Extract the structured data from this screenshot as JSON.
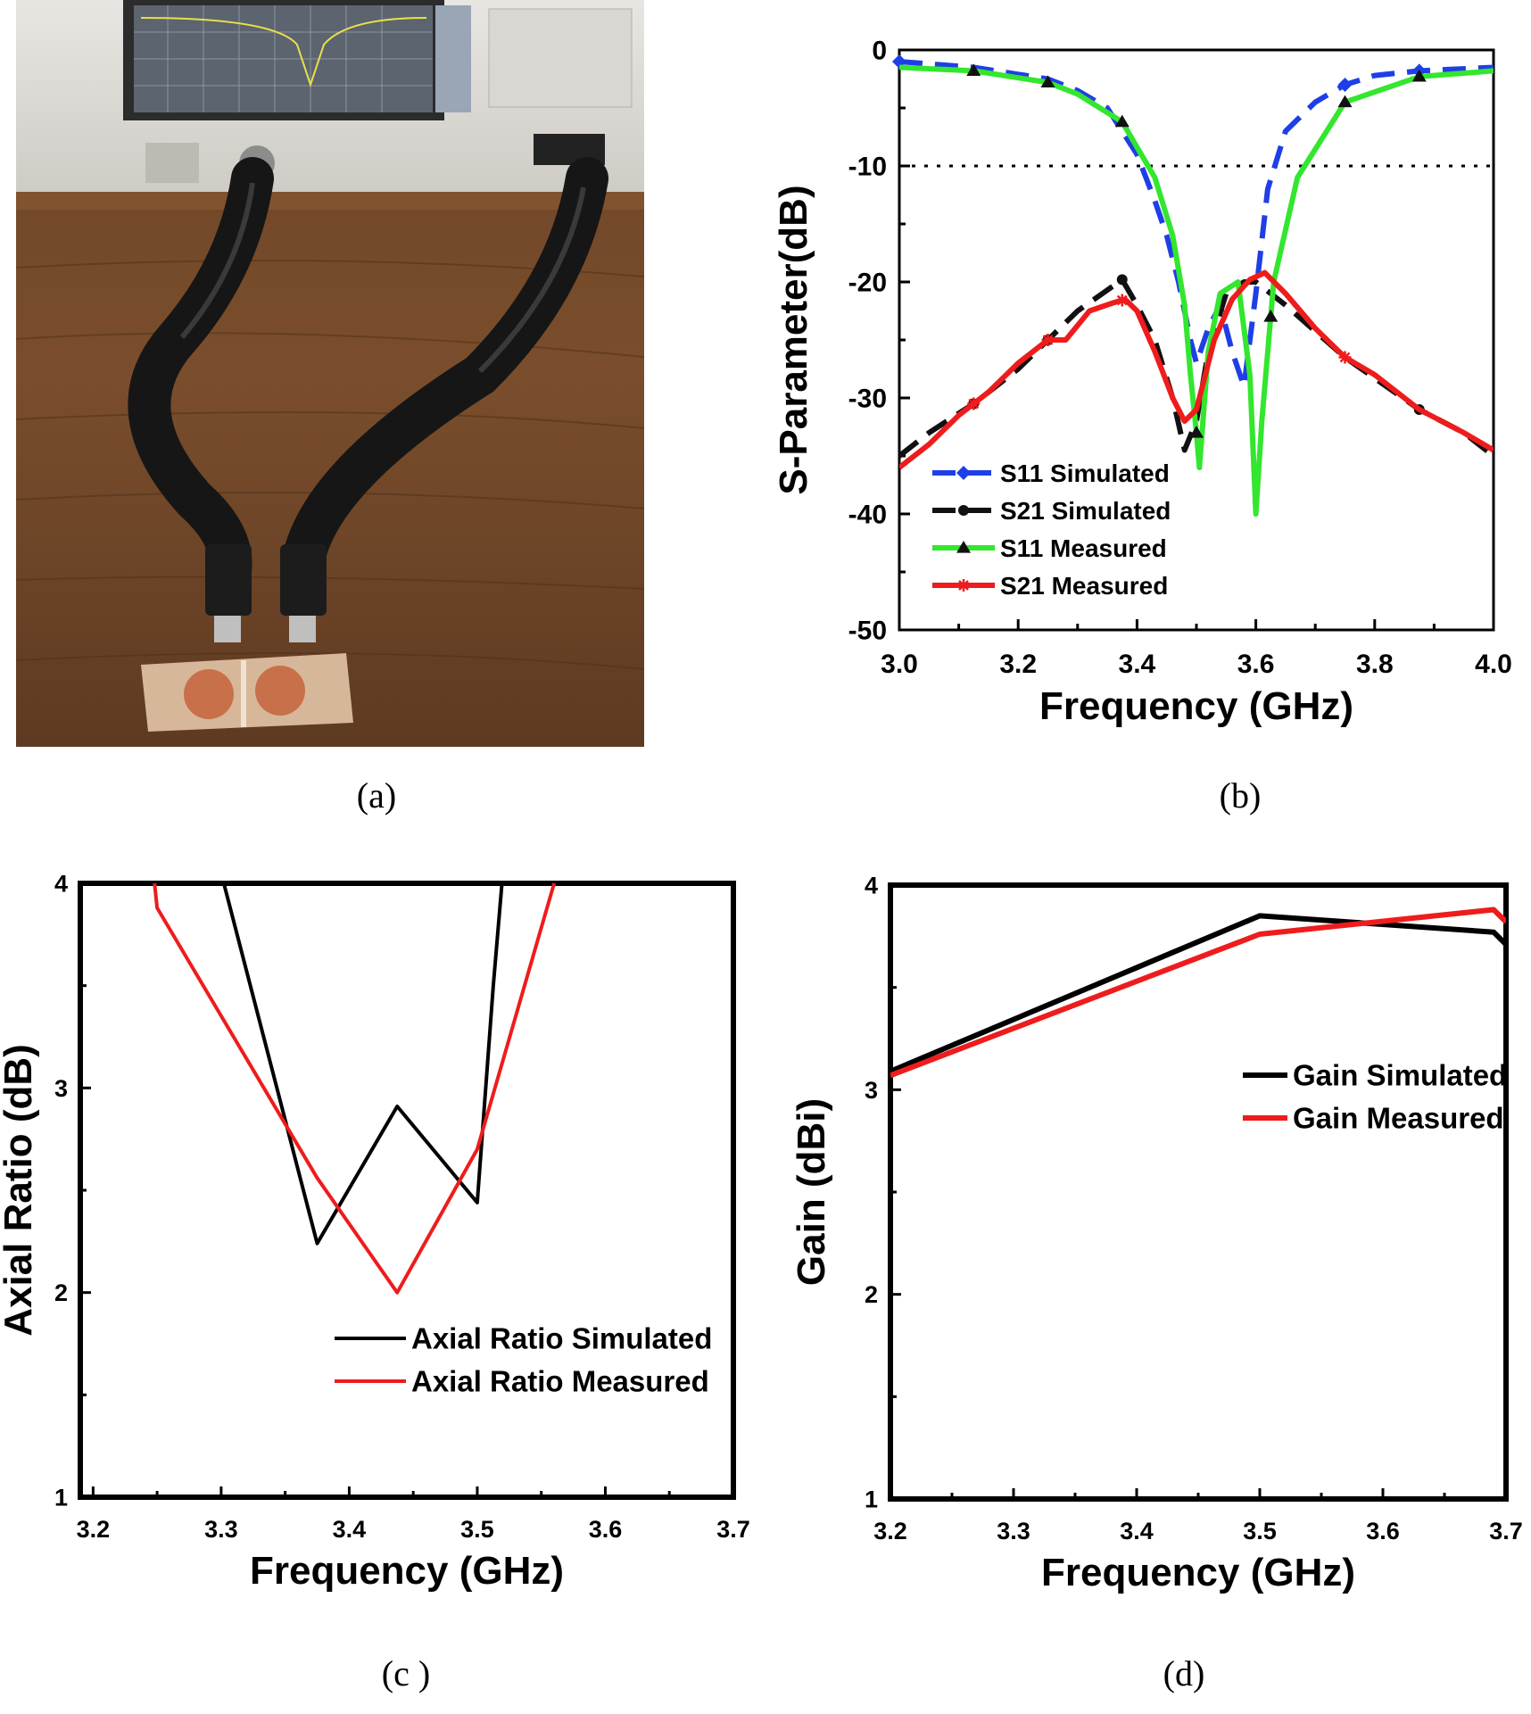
{
  "captions": [
    "(a)",
    "(b)",
    "(c )",
    "(d)"
  ],
  "colors": {
    "s11_sim": "#1f3fe6",
    "s21_sim": "#111111",
    "s11_meas": "#33e62e",
    "s21_meas": "#ee1c1c",
    "black": "#000000",
    "red": "#ee1c1c"
  },
  "photo": {
    "description_icon": "vna-measurement-photo"
  },
  "chart_data": [
    {
      "panel": "b",
      "type": "line",
      "xlabel": "Frequency (GHz)",
      "ylabel": "S-Parameter(dB)",
      "xlim": [
        3.0,
        4.0
      ],
      "ylim": [
        -50,
        0
      ],
      "xticks": [
        "3.0",
        "3.2",
        "3.4",
        "3.6",
        "3.8",
        "4.0"
      ],
      "yticks": [
        "0",
        "-10",
        "-20",
        "-30",
        "-40",
        "-50"
      ],
      "reference_line": -10,
      "legend_position": "bottom-left",
      "series": [
        {
          "name": "S11 Simulated",
          "style": "dashed",
          "marker": "diamond",
          "x": [
            3.0,
            3.125,
            3.25,
            3.3,
            3.35,
            3.4,
            3.43,
            3.45,
            3.47,
            3.49,
            3.5,
            3.52,
            3.54,
            3.56,
            3.58,
            3.6,
            3.62,
            3.65,
            3.7,
            3.75,
            3.8,
            3.875,
            4.0
          ],
          "y": [
            -1,
            -1.5,
            -2.5,
            -3.5,
            -5,
            -9,
            -13,
            -16,
            -20,
            -25,
            -27,
            -24,
            -22,
            -26,
            -29,
            -21,
            -12,
            -7,
            -4.5,
            -3,
            -2.2,
            -1.8,
            -1.5
          ]
        },
        {
          "name": "S21 Simulated",
          "style": "dashed",
          "marker": "circle",
          "x": [
            3.0,
            3.05,
            3.125,
            3.2,
            3.25,
            3.3,
            3.375,
            3.4,
            3.43,
            3.46,
            3.48,
            3.5,
            3.52,
            3.55,
            3.58,
            3.6,
            3.65,
            3.75,
            3.875,
            3.95,
            4.0
          ],
          "y": [
            -35,
            -33,
            -30.5,
            -27.5,
            -25,
            -22.5,
            -19.8,
            -22,
            -25,
            -30,
            -34.5,
            -32,
            -26,
            -21,
            -20,
            -20,
            -22,
            -26.5,
            -31,
            -33,
            -35
          ]
        },
        {
          "name": "S11 Measured",
          "style": "solid",
          "marker": "triangle",
          "x": [
            3.0,
            3.125,
            3.25,
            3.3,
            3.375,
            3.43,
            3.46,
            3.48,
            3.49,
            3.5,
            3.505,
            3.52,
            3.54,
            3.57,
            3.59,
            3.6,
            3.61,
            3.63,
            3.67,
            3.75,
            3.875,
            4.0
          ],
          "y": [
            -1.5,
            -1.8,
            -2.8,
            -3.8,
            -6.2,
            -11,
            -16,
            -22,
            -28,
            -33,
            -36,
            -26,
            -21,
            -20,
            -28,
            -40,
            -32,
            -20,
            -11,
            -4.5,
            -2.3,
            -1.8
          ]
        },
        {
          "name": "S21 Measured",
          "style": "solid",
          "marker": "star",
          "x": [
            3.0,
            3.05,
            3.1,
            3.15,
            3.2,
            3.25,
            3.28,
            3.32,
            3.36,
            3.38,
            3.4,
            3.43,
            3.46,
            3.48,
            3.5,
            3.53,
            3.56,
            3.59,
            3.615,
            3.65,
            3.7,
            3.75,
            3.8,
            3.875,
            3.95,
            4.0
          ],
          "y": [
            -36,
            -34,
            -31.5,
            -29.5,
            -27,
            -25,
            -25,
            -22.5,
            -21.8,
            -21.5,
            -22.5,
            -26,
            -30,
            -32,
            -31,
            -25,
            -21.5,
            -19.8,
            -19.2,
            -21,
            -24,
            -26.5,
            -28,
            -31,
            -33,
            -34.5
          ]
        }
      ]
    },
    {
      "panel": "c",
      "type": "line",
      "xlabel": "Frequency (GHz)",
      "ylabel": "Axial Ratio (dB)",
      "xlim": [
        3.19,
        3.7
      ],
      "ylim": [
        1,
        4
      ],
      "xticks": [
        "3.2",
        "3.3",
        "3.4",
        "3.5",
        "3.6",
        "3.7"
      ],
      "yticks": [
        "1",
        "2",
        "3",
        "4"
      ],
      "legend_position": "bottom-right",
      "series": [
        {
          "name": "Axial Ratio Simulated",
          "x": [
            3.3,
            3.375,
            3.4375,
            3.5,
            3.5125,
            3.52
          ],
          "y": [
            4.05,
            2.24,
            2.91,
            2.44,
            3.5,
            4.05
          ]
        },
        {
          "name": "Axial Ratio Measured",
          "x": [
            3.248,
            3.25,
            3.375,
            3.4375,
            3.5,
            3.56
          ],
          "y": [
            4.0,
            3.88,
            2.56,
            2.0,
            2.7,
            4.0
          ]
        }
      ]
    },
    {
      "panel": "d",
      "type": "line",
      "xlabel": "Frequency (GHz)",
      "ylabel": "Gain (dBi)",
      "xlim": [
        3.2,
        3.7
      ],
      "ylim": [
        1,
        4
      ],
      "xticks": [
        "3.2",
        "3.3",
        "3.4",
        "3.5",
        "3.6",
        "3.7"
      ],
      "yticks": [
        "1",
        "2",
        "3",
        "4"
      ],
      "legend_position": "upper-right",
      "series": [
        {
          "name": "Gain Simulated",
          "x": [
            3.2,
            3.5,
            3.69,
            3.7
          ],
          "y": [
            3.09,
            3.85,
            3.77,
            3.71
          ]
        },
        {
          "name": "Gain Measured",
          "x": [
            3.2,
            3.5,
            3.69,
            3.7
          ],
          "y": [
            3.07,
            3.76,
            3.88,
            3.82
          ]
        }
      ]
    }
  ]
}
